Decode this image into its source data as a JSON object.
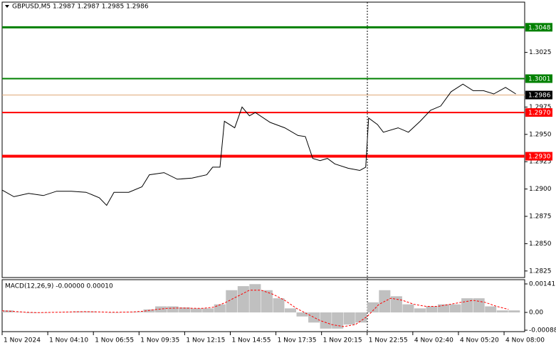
{
  "chart_data": [
    {
      "type": "line",
      "title": "GBPUSD,M5  1.2987 1.2987 1.2985 1.2986",
      "x": [
        0,
        8,
        18,
        28,
        37,
        47,
        57,
        66,
        71,
        76,
        86,
        95,
        100,
        110,
        119,
        129,
        139,
        143,
        148,
        151,
        158,
        163,
        168,
        172,
        182,
        192,
        201,
        206,
        211,
        216,
        221,
        226,
        235,
        243,
        247,
        249,
        255,
        259,
        269,
        276,
        284,
        291,
        298,
        305,
        313,
        320,
        327,
        334,
        342,
        349
      ],
      "values": [
        1.2899,
        1.2893,
        1.2896,
        1.2894,
        1.2898,
        1.2898,
        1.2897,
        1.2892,
        1.2885,
        1.2897,
        1.2897,
        1.2902,
        1.2913,
        1.2915,
        1.2909,
        1.291,
        1.2913,
        1.292,
        1.292,
        1.2962,
        1.2956,
        1.2975,
        1.2967,
        1.297,
        1.2961,
        1.2956,
        1.2949,
        1.2948,
        1.2928,
        1.2926,
        1.2928,
        1.2923,
        1.2919,
        1.2917,
        1.292,
        1.2965,
        1.2959,
        1.2952,
        1.2956,
        1.2952,
        1.2962,
        1.2972,
        1.2976,
        1.2989,
        1.2996,
        1.299,
        1.299,
        1.2987,
        1.2993,
        1.2987
      ],
      "color": "#000000",
      "xlim": [
        0,
        355
      ],
      "ylim": [
        1.2819,
        1.3071
      ],
      "yticks": [
        1.3025,
        1.2975,
        {
          "value": 1.295,
          "label": "1.2950"
        },
        1.2925,
        {
          "value": 1.29,
          "label": "1.2900"
        },
        1.2875,
        {
          "value": 1.285,
          "label": "1.2850"
        },
        1.2825
      ],
      "levels": [
        {
          "value": 1.3048,
          "label": "1.3048",
          "color": "#008000",
          "line_width": 3
        },
        {
          "value": 1.3001,
          "label": "1.3001",
          "color": "#008000",
          "line_width": 2
        },
        {
          "value": 1.2986,
          "label": "1.2986",
          "color": "#e0a878",
          "label_color": "#000000",
          "line_width": 1
        },
        {
          "value": 1.297,
          "label": "1.2970",
          "color": "#ff0000",
          "line_width": 2
        },
        {
          "value": 1.293,
          "label": "1.2930",
          "color": "#ff0000",
          "line_width": 4
        }
      ]
    },
    {
      "type": "macd",
      "title": "MACD(12,26,9) -0.00000 0.00010",
      "x": [
        0,
        8,
        16,
        24,
        32,
        40,
        48,
        56,
        64,
        72,
        80,
        88,
        96,
        104,
        112,
        120,
        128,
        136,
        144,
        152,
        160,
        168,
        176,
        184,
        192,
        200,
        208,
        216,
        224,
        232,
        240,
        248,
        256,
        264,
        272,
        280,
        288,
        296,
        304,
        312,
        320,
        328,
        336,
        344
      ],
      "histogram": {
        "color": "#c0c0c0",
        "values": [
          0.0001,
          2e-05,
          -3e-05,
          -2e-05,
          1e-05,
          2e-05,
          5e-05,
          5e-05,
          1e-05,
          -2e-05,
          2e-05,
          3e-05,
          0.00015,
          0.0003,
          0.0003,
          0.00025,
          0.0002,
          0.0002,
          0.0004,
          0.0011,
          0.0013,
          0.0014,
          0.0011,
          0.0007,
          0.0002,
          -0.0002,
          -0.0005,
          -0.0008,
          -0.0008,
          -0.0006,
          -0.0005,
          0.0005,
          0.0011,
          0.0008,
          0.0004,
          0.0002,
          0.0003,
          0.0004,
          0.0004,
          0.0007,
          0.0007,
          0.0003,
          0.0001,
          0.0001
        ]
      },
      "signal": {
        "color": "#ff0000",
        "values": [
          8e-05,
          5e-05,
          1e-05,
          -1e-05,
          0,
          1e-05,
          3e-05,
          4e-05,
          3e-05,
          1e-05,
          1e-05,
          2e-05,
          6e-05,
          0.00014,
          0.0002,
          0.00022,
          0.00021,
          0.0002,
          0.00026,
          0.0005,
          0.0008,
          0.0011,
          0.0011,
          0.0009,
          0.0006,
          0.0002,
          -0.0001,
          -0.0004,
          -0.0006,
          -0.0007,
          -0.0006,
          -0.0002,
          0.0004,
          0.0007,
          0.0006,
          0.0004,
          0.0003,
          0.0003,
          0.0004,
          0.0005,
          0.0006,
          0.0005,
          0.0003,
          0.00015
        ]
      },
      "xlim": [
        0,
        355
      ],
      "ylim": [
        -0.00095,
        0.00162
      ],
      "yticks": [
        0.00141,
        {
          "value": 0,
          "label": "0.00"
        },
        -0.00088
      ],
      "xticks": [
        {
          "value": 0,
          "label": "1 Nov 2024"
        },
        {
          "value": 31,
          "label": "1 Nov 04:10"
        },
        {
          "value": 62,
          "label": "1 Nov 06:55"
        },
        {
          "value": 93,
          "label": "1 Nov 09:35"
        },
        {
          "value": 124,
          "label": "1 Nov 12:15"
        },
        {
          "value": 155,
          "label": "1 Nov 14:55"
        },
        {
          "value": 186,
          "label": "1 Nov 17:35"
        },
        {
          "value": 217,
          "label": "1 Nov 20:15"
        },
        {
          "value": 248,
          "label": "1 Nov 22:55"
        },
        {
          "value": 279,
          "label": "4 Nov 02:40"
        },
        {
          "value": 310,
          "label": "4 Nov 05:20"
        },
        {
          "value": 341,
          "label": "4 Nov 08:00"
        }
      ]
    }
  ]
}
